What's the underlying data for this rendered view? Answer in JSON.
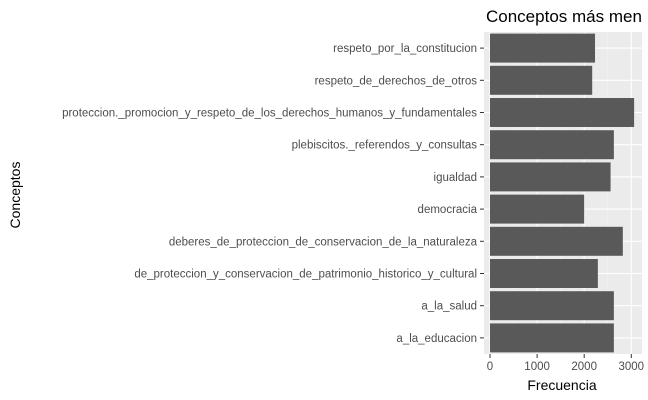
{
  "chart_data": {
    "type": "bar",
    "orientation": "horizontal",
    "title": "Conceptos más men",
    "xlabel": "Frecuencia",
    "ylabel": "Conceptos",
    "xlim": [
      0,
      3100
    ],
    "xticks": [
      0,
      1000,
      2000,
      3000
    ],
    "grid": true,
    "background": "#ebebeb",
    "bar_color": "#595959",
    "categories": [
      "respeto_por_la_constitucion",
      "respeto_de_derechos_de_otros",
      "proteccion._promocion_y_respeto_de_los_derechos_humanos_y_fundamentales",
      "plebiscitos._referendos_y_consultas",
      "igualdad",
      "democracia",
      "deberes_de_proteccion_de_conservacion_de_la_naturaleza",
      "de_proteccion_y_conservacion_de_patrimonio_historico_y_cultural",
      "a_la_salud",
      "a_la_educacion"
    ],
    "values": [
      2230,
      2170,
      3060,
      2630,
      2560,
      2000,
      2820,
      2290,
      2630,
      2630
    ]
  }
}
